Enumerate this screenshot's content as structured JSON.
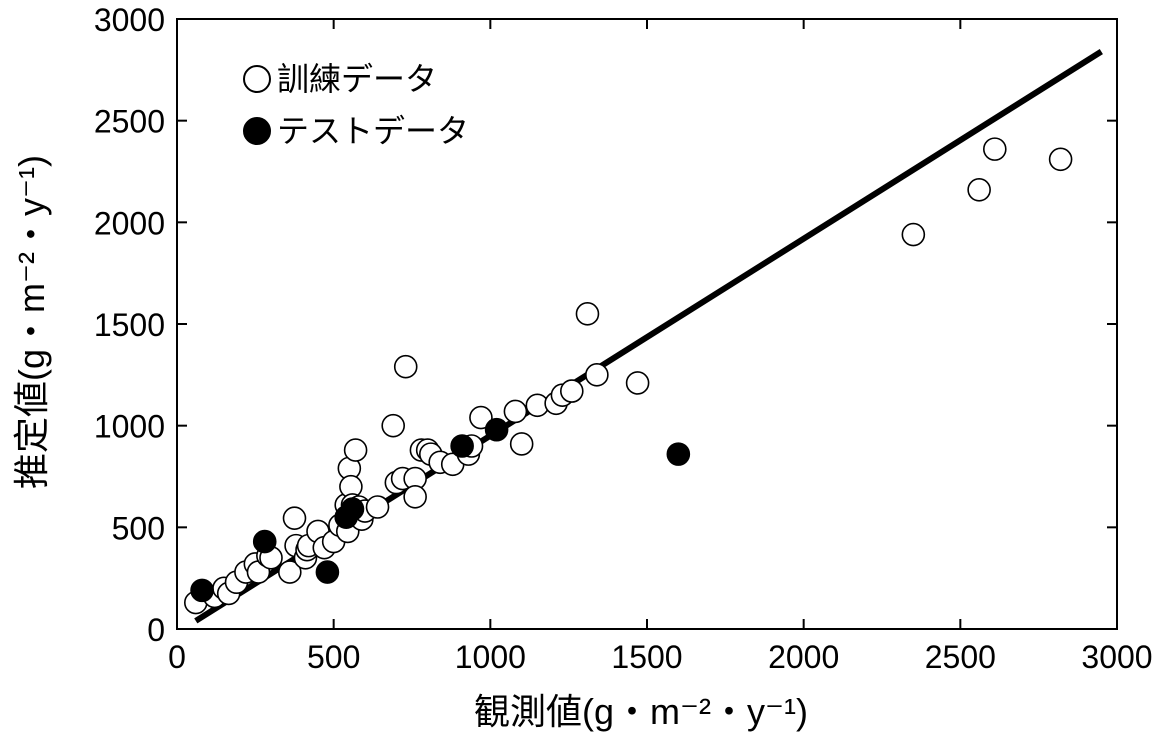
{
  "chart_data": {
    "type": "scatter",
    "xlabel": "観測値(g・m⁻²・y⁻¹)",
    "ylabel": "推定値(g・m⁻²・y⁻¹)",
    "xlim": [
      0,
      3000
    ],
    "ylim": [
      0,
      3000
    ],
    "xticks": [
      "0",
      "500",
      "1000",
      "1500",
      "2000",
      "2500",
      "3000"
    ],
    "yticks": [
      "0",
      "500",
      "1000",
      "1500",
      "2000",
      "2500",
      "3000"
    ],
    "grid": false,
    "legend_position": "top-left",
    "regression_line": {
      "x": [
        60,
        2950
      ],
      "y": [
        40,
        2840
      ]
    },
    "series": [
      {
        "name": "訓練データ",
        "marker": "open-circle",
        "points": [
          [
            60,
            130
          ],
          [
            120,
            160
          ],
          [
            150,
            200
          ],
          [
            165,
            175
          ],
          [
            190,
            230
          ],
          [
            220,
            280
          ],
          [
            250,
            320
          ],
          [
            260,
            280
          ],
          [
            290,
            360
          ],
          [
            300,
            350
          ],
          [
            360,
            280
          ],
          [
            375,
            545
          ],
          [
            380,
            410
          ],
          [
            410,
            350
          ],
          [
            415,
            390
          ],
          [
            420,
            410
          ],
          [
            450,
            480
          ],
          [
            470,
            400
          ],
          [
            500,
            430
          ],
          [
            520,
            510
          ],
          [
            540,
            610
          ],
          [
            545,
            480
          ],
          [
            550,
            790
          ],
          [
            555,
            700
          ],
          [
            560,
            610
          ],
          [
            570,
            880
          ],
          [
            580,
            600
          ],
          [
            590,
            540
          ],
          [
            600,
            580
          ],
          [
            640,
            600
          ],
          [
            690,
            1000
          ],
          [
            700,
            720
          ],
          [
            720,
            740
          ],
          [
            730,
            1290
          ],
          [
            760,
            740
          ],
          [
            760,
            650
          ],
          [
            780,
            880
          ],
          [
            800,
            880
          ],
          [
            810,
            860
          ],
          [
            840,
            820
          ],
          [
            880,
            810
          ],
          [
            930,
            860
          ],
          [
            940,
            900
          ],
          [
            970,
            1040
          ],
          [
            1080,
            1070
          ],
          [
            1100,
            910
          ],
          [
            1150,
            1100
          ],
          [
            1210,
            1110
          ],
          [
            1230,
            1150
          ],
          [
            1260,
            1170
          ],
          [
            1310,
            1550
          ],
          [
            1340,
            1250
          ],
          [
            1470,
            1210
          ],
          [
            2350,
            1940
          ],
          [
            2560,
            2160
          ],
          [
            2610,
            2360
          ],
          [
            2820,
            2310
          ]
        ]
      },
      {
        "name": "テストデータ",
        "marker": "filled-circle",
        "points": [
          [
            80,
            190
          ],
          [
            280,
            430
          ],
          [
            480,
            280
          ],
          [
            540,
            550
          ],
          [
            560,
            590
          ],
          [
            910,
            900
          ],
          [
            1020,
            980
          ],
          [
            1600,
            860
          ]
        ]
      }
    ]
  }
}
